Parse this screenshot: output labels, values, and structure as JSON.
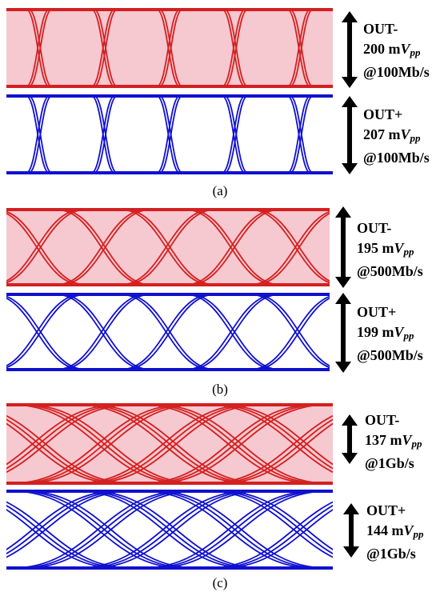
{
  "panels": [
    {
      "caption": "(a)",
      "traces": [
        {
          "amp_value": "200",
          "amp_unit_prefix": "m",
          "amp_symbol": "V",
          "amp_subscript": "pp",
          "name": "OUT-",
          "rate": "@100Mb/s",
          "color": "#d42020",
          "fill": "#f6c8d0",
          "crossings": 5,
          "rise": 0.035,
          "jitter": 0.004
        },
        {
          "amp_value": "207",
          "amp_unit_prefix": "m",
          "amp_symbol": "V",
          "amp_subscript": "pp",
          "name": "OUT+",
          "rate": "@100Mb/s",
          "color": "#1010d0",
          "fill": "none",
          "crossings": 5,
          "rise": 0.035,
          "jitter": 0.004
        }
      ]
    },
    {
      "caption": "(b)",
      "traces": [
        {
          "amp_value": "195",
          "amp_unit_prefix": "m",
          "amp_symbol": "V",
          "amp_subscript": "pp",
          "name": "OUT-",
          "rate": "@500Mb/s",
          "color": "#d42020",
          "fill": "#f6c8d0",
          "crossings": 5,
          "rise": 0.14,
          "jitter": 0.006
        },
        {
          "amp_value": "199",
          "amp_unit_prefix": "m",
          "amp_symbol": "V",
          "amp_subscript": "pp",
          "name": "OUT+",
          "rate": "@500Mb/s",
          "color": "#1010d0",
          "fill": "none",
          "crossings": 5,
          "rise": 0.14,
          "jitter": 0.006
        }
      ]
    },
    {
      "caption": "(c)",
      "traces": [
        {
          "amp_value": "137",
          "amp_unit_prefix": "m",
          "amp_symbol": "V",
          "amp_subscript": "pp",
          "name": "OUT-",
          "rate": "@1Gb/s",
          "color": "#d42020",
          "fill": "#f6c8d0",
          "crossings": 5,
          "rise": 0.26,
          "jitter": 0.02
        },
        {
          "amp_value": "144",
          "amp_unit_prefix": "m",
          "amp_symbol": "V",
          "amp_subscript": "pp",
          "name": "OUT+",
          "rate": "@1Gb/s",
          "color": "#1010d0",
          "fill": "none",
          "crossings": 5,
          "rise": 0.26,
          "jitter": 0.02
        }
      ]
    }
  ]
}
